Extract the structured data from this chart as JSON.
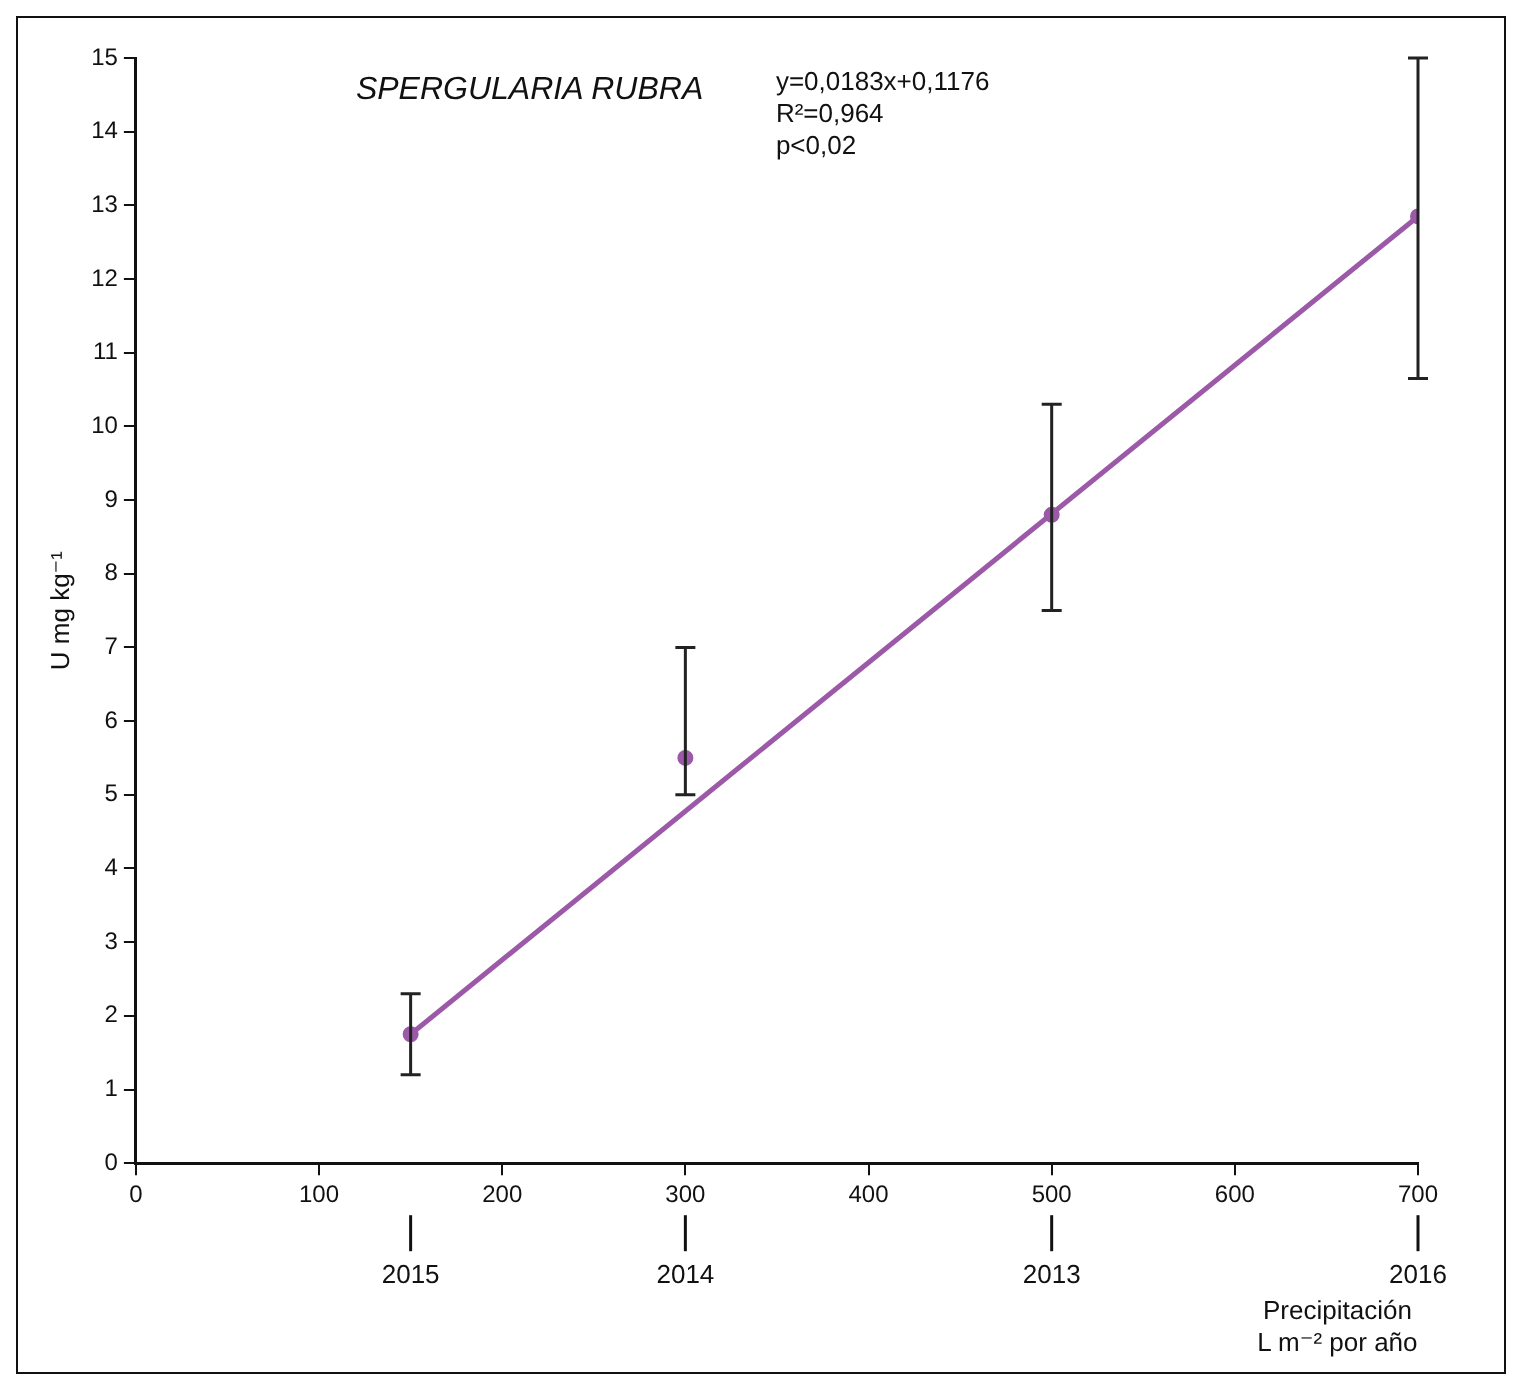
{
  "chart_data": {
    "type": "scatter",
    "title": "SPERGULARIA RUBRA",
    "xlabel": "Precipitación\nL m⁻² por año",
    "ylabel": "U mg kg⁻¹",
    "annotations": [
      "y=0,0183x+0,1176\nR²=0,964\np<0,02",
      {
        "text": "2015",
        "x": 150
      },
      {
        "text": "2014",
        "x": 300
      },
      {
        "text": "2013",
        "x": 500
      },
      {
        "text": "2016",
        "x": 700
      }
    ],
    "x": [
      150,
      300,
      500,
      700
    ],
    "series": [
      {
        "color": "#9b59a8",
        "values": [
          1.75,
          5.5,
          8.8,
          12.85
        ],
        "errors": [
          [
            1.2,
            2.3
          ],
          [
            5.0,
            7.0
          ],
          [
            7.5,
            10.3
          ],
          [
            10.65,
            15.0
          ]
        ]
      },
      {
        "type": "line",
        "marker": "none",
        "color": "#9b59a8",
        "x": [
          150,
          700
        ],
        "values": [
          1.75,
          12.85
        ]
      }
    ],
    "xlim": [
      0,
      700
    ],
    "xticks": [
      0,
      100,
      200,
      300,
      400,
      500,
      600,
      700
    ],
    "ylim": [
      0,
      15
    ],
    "yticks": [
      0,
      1,
      2,
      3,
      4,
      5,
      6,
      7,
      8,
      9,
      10,
      11,
      12,
      13,
      14,
      15
    ],
    "grid": false,
    "legend": false,
    "marker": "circle",
    "line_style": "solid"
  }
}
